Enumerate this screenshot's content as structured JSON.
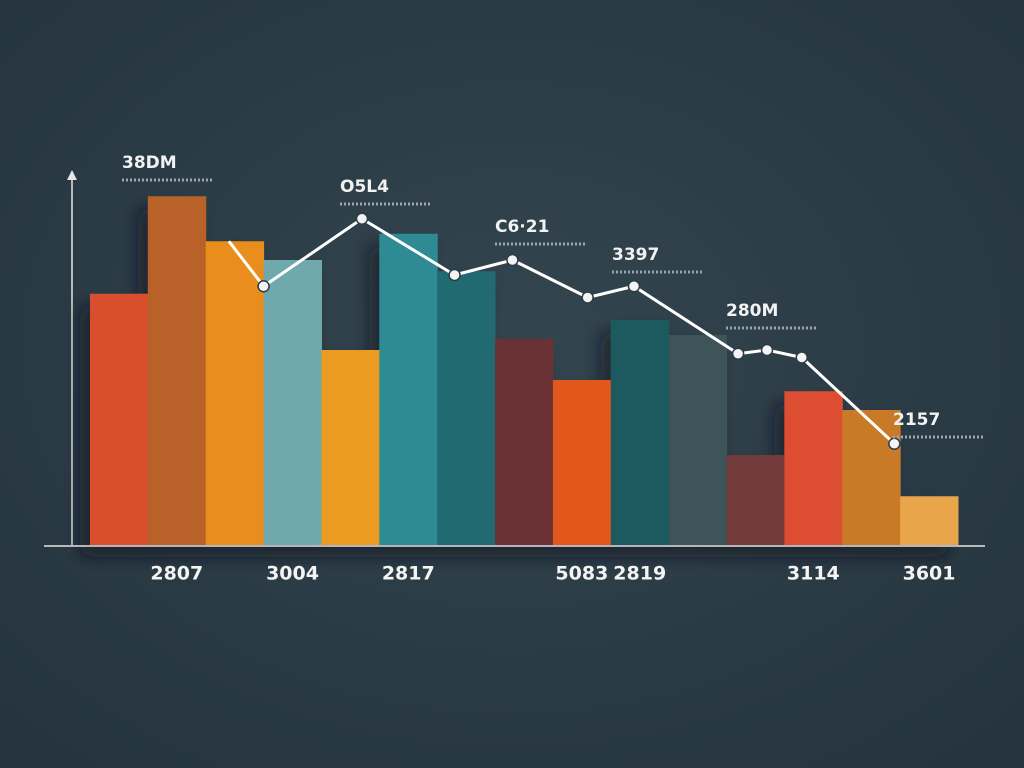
{
  "chart_data": {
    "type": "bar",
    "categories": [
      null,
      "2807",
      null,
      "3004",
      null,
      "2817",
      null,
      null,
      "5083",
      "2819",
      null,
      null,
      "3114",
      null,
      "3601"
    ],
    "values": [
      67,
      93,
      81,
      76,
      52,
      83,
      73,
      55,
      44,
      60,
      56,
      24,
      41,
      36,
      13
    ],
    "colors": [
      "#d9502f",
      "#b8622a",
      "#e98d1c",
      "#6fa9ad",
      "#eb9a22",
      "#2f8a93",
      "#236a72",
      "#6a3336",
      "#e2591a",
      "#1f5a61",
      "#3c5559",
      "#733a3a",
      "#dd4e31",
      "#c97a25",
      "#e8a54a"
    ],
    "ylim": [
      0,
      100
    ],
    "line": {
      "color": "#ffffff",
      "xlim": [
        0,
        15
      ],
      "x": [
        2.4,
        3.0,
        4.7,
        6.3,
        7.3,
        8.6,
        9.4,
        11.2,
        11.7,
        12.3,
        13.9
      ],
      "values": [
        81,
        69,
        87,
        72,
        76,
        66,
        69,
        51,
        52,
        50,
        27
      ]
    },
    "annotations": [
      "38DM",
      "O5L4",
      "C6·21",
      "3397",
      "280M",
      "2157"
    ]
  }
}
